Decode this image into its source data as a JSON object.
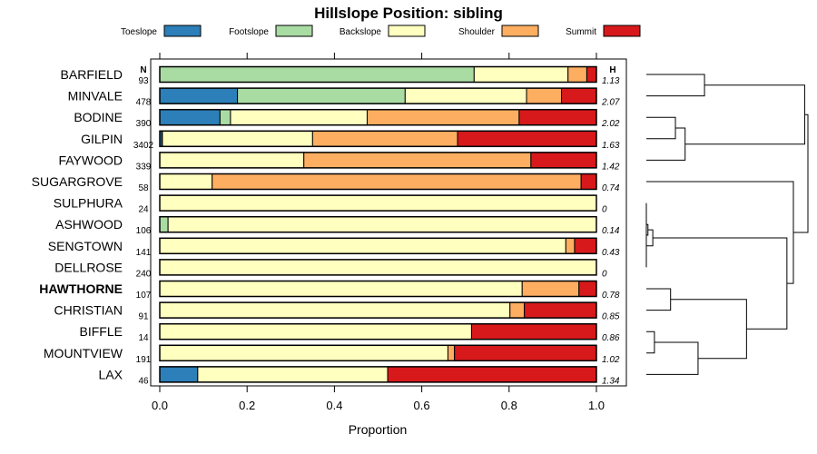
{
  "chart_data": {
    "type": "bar",
    "orientation": "horizontal",
    "stacked": true,
    "title": "Hillslope Position: sibling",
    "xlabel": "Proportion",
    "ylabel": "",
    "xlim": [
      0,
      1
    ],
    "xticks": [
      "0.0",
      "0.2",
      "0.4",
      "0.6",
      "0.8",
      "1.0"
    ],
    "n_header": "N",
    "h_header": "H",
    "legend": [
      {
        "name": "Toeslope",
        "color": "#2C7FB8"
      },
      {
        "name": "Footslope",
        "color": "#A9DCA3"
      },
      {
        "name": "Backslope",
        "color": "#FFFFBF"
      },
      {
        "name": "Shoulder",
        "color": "#FDAE61"
      },
      {
        "name": "Summit",
        "color": "#D7191C"
      }
    ],
    "highlight": "HAWTHORNE",
    "categories": [
      "BARFIELD",
      "MINVALE",
      "BODINE",
      "GILPIN",
      "FAYWOOD",
      "SUGARGROVE",
      "SULPHURA",
      "ASHWOOD",
      "SENGTOWN",
      "DELLROSE",
      "HAWTHORNE",
      "CHRISTIAN",
      "BIFFLE",
      "MOUNTVIEW",
      "LAX"
    ],
    "n": [
      "93",
      "478",
      "390",
      "3402",
      "339",
      "58",
      "24",
      "106",
      "141",
      "240",
      "107",
      "91",
      "14",
      "191",
      "46"
    ],
    "h": [
      "1.13",
      "2.07",
      "2.02",
      "1.63",
      "1.42",
      "0.74",
      "0",
      "0.14",
      "0.43",
      "0",
      "0.78",
      "0.85",
      "0.86",
      "1.02",
      "1.34"
    ],
    "series": [
      {
        "name": "Toeslope",
        "values": [
          0,
          0.178,
          0.138,
          0.005,
          0,
          0,
          0,
          0,
          0,
          0,
          0,
          0,
          0,
          0,
          0.087
        ]
      },
      {
        "name": "Footslope",
        "values": [
          0.72,
          0.384,
          0.024,
          0.001,
          0,
          0,
          0,
          0.019,
          0,
          0,
          0,
          0,
          0,
          0,
          0
        ]
      },
      {
        "name": "Backslope",
        "values": [
          0.215,
          0.278,
          0.313,
          0.344,
          0.33,
          0.12,
          1.0,
          0.981,
          0.93,
          1.0,
          0.83,
          0.802,
          0.714,
          0.66,
          0.435
        ]
      },
      {
        "name": "Shoulder",
        "values": [
          0.043,
          0.08,
          0.348,
          0.332,
          0.52,
          0.845,
          0,
          0,
          0.02,
          0,
          0.13,
          0.033,
          0,
          0.015,
          0
        ]
      },
      {
        "name": "Summit",
        "values": [
          0.022,
          0.08,
          0.177,
          0.318,
          0.15,
          0.035,
          0,
          0,
          0.05,
          0,
          0.04,
          0.165,
          0.286,
          0.325,
          0.478
        ]
      }
    ],
    "dendrogram": {
      "merges": [
        {
          "a": "SULPHURA",
          "b": "DELLROSE",
          "height": 0.0
        },
        {
          "a": "m1",
          "b": "ASHWOOD",
          "height": 0.01
        },
        {
          "a": "m2",
          "b": "SENGTOWN",
          "height": 0.04
        },
        {
          "a": "BODINE",
          "b": "GILPIN",
          "height": 0.18
        },
        {
          "a": "m4",
          "b": "FAYWOOD",
          "height": 0.24
        },
        {
          "a": "HAWTHORNE",
          "b": "CHRISTIAN",
          "height": 0.15
        },
        {
          "a": "BIFFLE",
          "b": "MOUNTVIEW",
          "height": 0.05
        },
        {
          "a": "m7",
          "b": "LAX",
          "height": 0.32
        },
        {
          "a": "m6",
          "b": "m8",
          "height": 0.62
        },
        {
          "a": "m3",
          "b": "m9",
          "height": 0.87
        },
        {
          "a": "m10",
          "b": "SUGARGROVE",
          "height": 0.91
        },
        {
          "a": "BARFIELD",
          "b": "MINVALE",
          "height": 0.36
        },
        {
          "a": "m12",
          "b": "m5",
          "height": 0.98
        },
        {
          "a": "m13",
          "b": "m11",
          "height": 1.0
        }
      ]
    }
  }
}
